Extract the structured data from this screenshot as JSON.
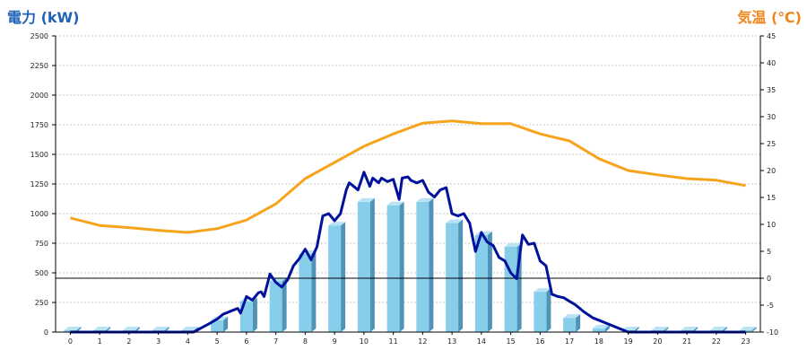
{
  "chart_data": {
    "type": "bar",
    "title_left": "電力 (kW)",
    "title_right": "気温 (℃)",
    "y_left": {
      "min": 0,
      "max": 2500,
      "ticks": [
        "0",
        "250",
        "500",
        "750",
        "1000",
        "1250",
        "1500",
        "1750",
        "2000",
        "2250",
        "2500"
      ]
    },
    "y_right": {
      "min": -10,
      "max": 45,
      "ticks": [
        "-10",
        "-5",
        "0",
        "5",
        "10",
        "15",
        "20",
        "25",
        "30",
        "35",
        "40",
        "45"
      ]
    },
    "categories": [
      "0",
      "1",
      "2",
      "3",
      "4",
      "5",
      "6",
      "7",
      "8",
      "9",
      "10",
      "11",
      "12",
      "13",
      "14",
      "15",
      "16",
      "17",
      "18",
      "19",
      "20",
      "21",
      "22",
      "23"
    ],
    "grid": true,
    "colors": {
      "bar_front": "#87ceeb",
      "bar_side": "#4f93b7",
      "bar_top": "#b9e3f4",
      "power_line": "#00129c",
      "temp_line": "#f7a41d",
      "grid": "#c8c8c8",
      "zero_line": "#000000"
    },
    "series": [
      {
        "kind": "bar",
        "axis": "left",
        "values": [
          15,
          15,
          15,
          15,
          15,
          100,
          260,
          430,
          660,
          900,
          1100,
          1070,
          1100,
          920,
          820,
          720,
          340,
          120,
          30,
          15,
          15,
          15,
          15,
          15
        ]
      },
      {
        "kind": "line",
        "axis": "right",
        "values": [
          11.2,
          9.8,
          9.4,
          8.9,
          8.5,
          9.2,
          10.8,
          13.8,
          18.5,
          21.5,
          24.5,
          26.8,
          28.8,
          29.2,
          28.7,
          28.7,
          26.8,
          25.5,
          22.2,
          20,
          19.2,
          18.5,
          18.2,
          17.2
        ]
      },
      {
        "kind": "line",
        "axis": "left",
        "x": [
          0,
          1,
          2,
          3,
          4,
          4.2,
          4.5,
          4.8,
          5.0,
          5.2,
          5.5,
          5.7,
          5.8,
          6.0,
          6.2,
          6.4,
          6.5,
          6.6,
          6.8,
          7.0,
          7.2,
          7.4,
          7.6,
          7.8,
          8.0,
          8.2,
          8.4,
          8.6,
          8.8,
          9.0,
          9.2,
          9.4,
          9.5,
          9.6,
          9.8,
          10.0,
          10.2,
          10.3,
          10.5,
          10.6,
          10.8,
          11.0,
          11.2,
          11.3,
          11.5,
          11.6,
          11.8,
          12.0,
          12.2,
          12.4,
          12.6,
          12.8,
          13.0,
          13.2,
          13.4,
          13.6,
          13.8,
          14.0,
          14.2,
          14.4,
          14.6,
          14.8,
          15.0,
          15.2,
          15.4,
          15.6,
          15.8,
          16.0,
          16.2,
          16.4,
          16.6,
          16.8,
          17.0,
          17.2,
          17.5,
          17.8,
          18.0,
          19,
          20,
          21,
          22,
          23
        ],
        "values": [
          0,
          0,
          0,
          0,
          0,
          0,
          40,
          80,
          110,
          150,
          180,
          200,
          160,
          300,
          270,
          330,
          340,
          300,
          490,
          420,
          380,
          440,
          560,
          620,
          700,
          610,
          720,
          980,
          1000,
          940,
          1000,
          1200,
          1260,
          1240,
          1200,
          1350,
          1230,
          1300,
          1260,
          1300,
          1270,
          1290,
          1120,
          1300,
          1310,
          1280,
          1260,
          1280,
          1180,
          1140,
          1200,
          1220,
          1000,
          980,
          1000,
          920,
          680,
          840,
          760,
          730,
          630,
          600,
          500,
          450,
          820,
          740,
          750,
          600,
          560,
          320,
          300,
          290,
          260,
          230,
          170,
          120,
          100,
          0,
          0,
          0,
          0,
          0
        ]
      }
    ]
  }
}
